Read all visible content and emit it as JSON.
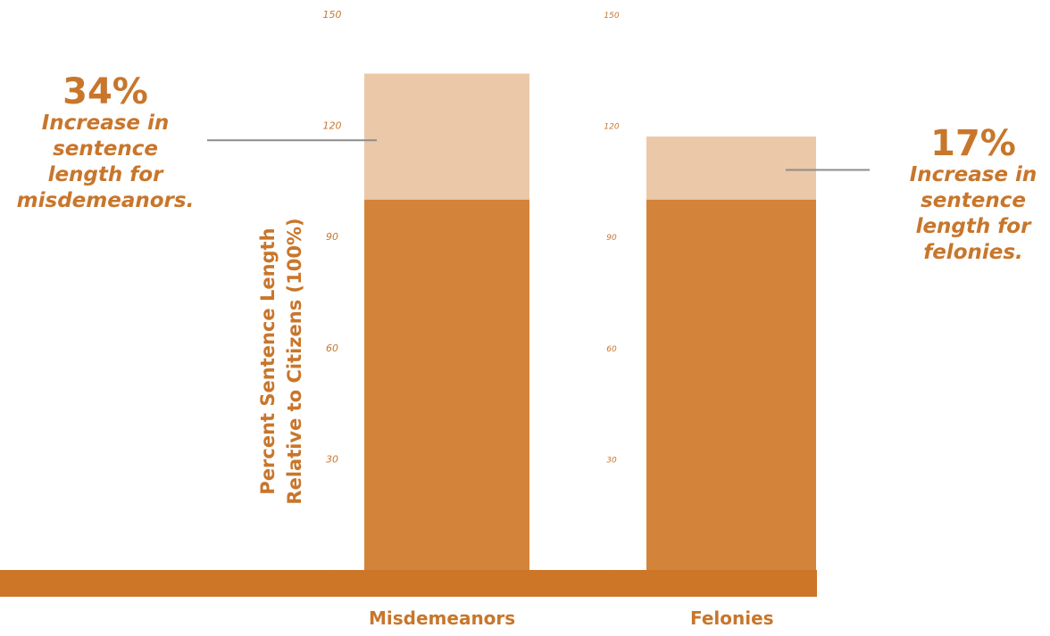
{
  "colors": {
    "base": "#d4833a",
    "increase": "#ebc8a8",
    "axis_band": "#cd7628",
    "accent": "#c8762b",
    "leader": "#8c8c8c"
  },
  "chart_data": {
    "type": "bar",
    "stacked": true,
    "categories": [
      "Misdemeanors",
      "Felonies"
    ],
    "series": [
      {
        "values": [
          100,
          100
        ]
      },
      {
        "values": [
          34,
          17
        ]
      }
    ],
    "ylabel": "Percent Sentence Length Relative to Citizens (100%)",
    "ylabel_lines": [
      "Percent Sentence Length",
      "Relative to Citizens (100%)"
    ],
    "yticks": [
      "0",
      "30",
      "60",
      "90",
      "120",
      "150"
    ],
    "ylim": [
      0,
      150
    ],
    "annotations": [
      {
        "value": "34%",
        "text": "Increase in sentence length for misdemeanors.",
        "lines": [
          "Increase in",
          "sentence",
          "length for",
          "misdemeanors."
        ]
      },
      {
        "value": "17%",
        "text": "Increase in sentence length for felonies.",
        "lines": [
          "Increase in",
          "sentence",
          "length for",
          "felonies."
        ]
      }
    ]
  }
}
